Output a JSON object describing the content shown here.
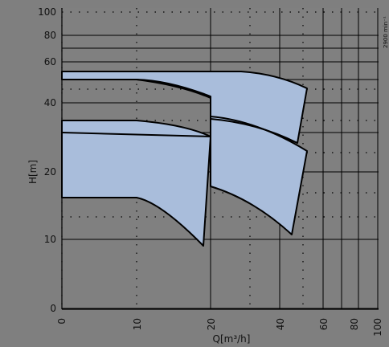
{
  "chart_data": {
    "type": "area",
    "title": "",
    "xlabel": "Q[m³/h]",
    "ylabel": "H[m]",
    "x_scale": "log-like (pump selection chart)",
    "x_ticks": [
      "0",
      "10",
      "20",
      "40",
      "60",
      "80",
      "100"
    ],
    "y_ticks": [
      "0",
      "10",
      "20",
      "40",
      "60",
      "80",
      "100"
    ],
    "xlim": [
      0,
      100
    ],
    "ylim": [
      0,
      100
    ],
    "speed_label": "2900 min⁻¹",
    "grid": true,
    "series": [
      {
        "points": [
          [
            0,
            15
          ],
          [
            10,
            15
          ],
          [
            19,
            9
          ],
          [
            19.5,
            29
          ],
          [
            0,
            29
          ]
        ]
      },
      {
        "points": [
          [
            0,
            29
          ],
          [
            10,
            29
          ],
          [
            19.5,
            29
          ],
          [
            20,
            52
          ],
          [
            0,
            52
          ]
        ]
      },
      {
        "points": [
          [
            20,
            17
          ],
          [
            42,
            11
          ],
          [
            50,
            27
          ],
          [
            20,
            32
          ]
        ]
      },
      {
        "points": [
          [
            20,
            32
          ],
          [
            46,
            27
          ],
          [
            50,
            45
          ],
          [
            20,
            52
          ]
        ]
      }
    ],
    "fill_color": "#a9bddb",
    "line_color": "#000000"
  }
}
